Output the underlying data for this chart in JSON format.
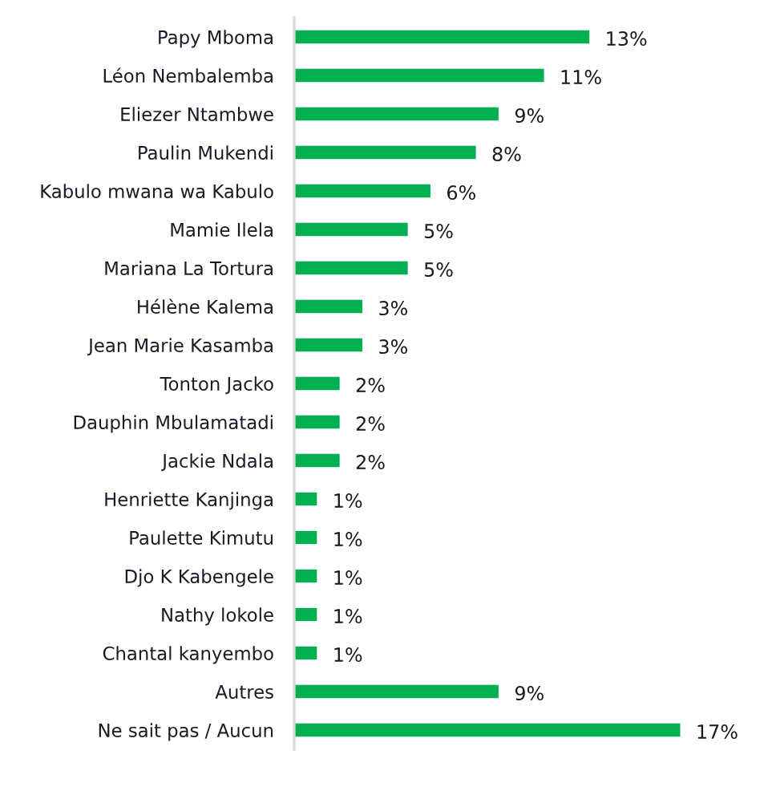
{
  "chart_data": {
    "type": "bar",
    "orientation": "horizontal",
    "categories": [
      "Papy Mboma",
      "Léon Nembalemba",
      "Eliezer Ntambwe",
      "Paulin Mukendi",
      "Kabulo mwana wa Kabulo",
      "Mamie Ilela",
      "Mariana La Tortura",
      "Hélène Kalema",
      "Jean Marie Kasamba",
      "Tonton Jacko",
      "Dauphin Mbulamatadi",
      "Jackie Ndala",
      "Henriette Kanjinga",
      "Paulette Kimutu",
      "Djo K Kabengele",
      "Nathy lokole",
      "Chantal kanyembo",
      "Autres",
      "Ne sait pas / Aucun"
    ],
    "values": [
      13,
      11,
      9,
      8,
      6,
      5,
      5,
      3,
      3,
      2,
      2,
      2,
      1,
      1,
      1,
      1,
      1,
      9,
      17
    ],
    "value_labels": [
      "13%",
      "11%",
      "9%",
      "8%",
      "6%",
      "5%",
      "5%",
      "3%",
      "3%",
      "2%",
      "2%",
      "2%",
      "1%",
      "1%",
      "1%",
      "1%",
      "1%",
      "9%",
      "17%"
    ],
    "color": "#00b050"
  }
}
